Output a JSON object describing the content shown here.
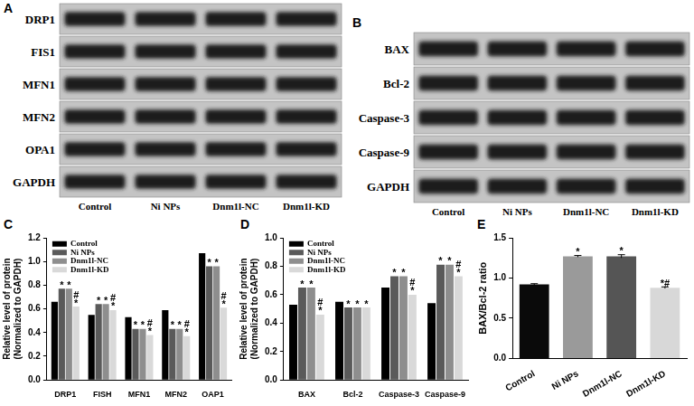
{
  "blots": [
    {
      "panel": "A",
      "rows": [
        "DRP1",
        "FIS1",
        "MFN1",
        "MFN2",
        "OPA1",
        "GAPDH"
      ],
      "lanes": [
        "Control",
        "Ni NPs",
        "Dnm1l-NC",
        "Dnm1l-KD"
      ]
    },
    {
      "panel": "B",
      "rows": [
        "BAX",
        "Bcl-2",
        "Caspase-3",
        "Caspase-9",
        "GAPDH"
      ],
      "lanes": [
        "Control",
        "Ni NPs",
        "Dnm1l-NC",
        "Dnm1l-KD"
      ]
    }
  ],
  "chart_data": [
    {
      "panel": "C",
      "type": "bar",
      "y_label": "Relative level of protein (Normalized to GAPDH)",
      "categories": [
        "DRP1",
        "FISH",
        "MFN1",
        "MFN2",
        "OAP1"
      ],
      "series": [
        {
          "name": "Control",
          "color": "#000000",
          "values": [
            0.66,
            0.55,
            0.53,
            0.59,
            1.07
          ],
          "marks": [
            null,
            null,
            null,
            null,
            null
          ]
        },
        {
          "name": "Ni NPs",
          "color": "#5a5a5a",
          "values": [
            0.77,
            0.64,
            0.43,
            0.43,
            0.96
          ],
          "marks": [
            "*",
            "*",
            "*",
            "*",
            "*"
          ]
        },
        {
          "name": "Dnm1l-NC",
          "color": "#8e8e8e",
          "values": [
            0.77,
            0.64,
            0.43,
            0.43,
            0.96
          ],
          "marks": [
            "*",
            "*",
            "*",
            "*",
            "*"
          ]
        },
        {
          "name": "Dnm1l-KD",
          "color": "#d9d9d9",
          "values": [
            0.62,
            0.59,
            0.38,
            0.37,
            0.61
          ],
          "marks": [
            "#*",
            "#*",
            "#*",
            "#*",
            "#*"
          ]
        }
      ],
      "ylim": [
        0,
        1.2
      ],
      "yticks": [
        {
          "value": 0,
          "label": "0.0"
        },
        {
          "value": 0.2,
          "label": "0.2"
        },
        {
          "value": 0.4,
          "label": "0.4"
        },
        {
          "value": 0.6,
          "label": "0.6"
        },
        {
          "value": 0.8,
          "label": "0.8"
        },
        {
          "value": 1.0,
          "label": "1.0"
        },
        {
          "value": 1.2,
          "label": "1.2"
        }
      ],
      "legend": "upper left",
      "grid": false
    },
    {
      "panel": "D",
      "type": "bar",
      "y_label": "Relative level of protein (Normalized to GAPDH)",
      "categories": [
        "BAX",
        "Bcl-2",
        "Caspase-3",
        "Caspase-9"
      ],
      "series": [
        {
          "name": "Control",
          "color": "#000000",
          "values": [
            0.53,
            0.55,
            0.65,
            0.54
          ],
          "marks": [
            null,
            null,
            null,
            null
          ]
        },
        {
          "name": "Ni NPs",
          "color": "#5a5a5a",
          "values": [
            0.65,
            0.51,
            0.73,
            0.81
          ],
          "marks": [
            "*",
            "*",
            "*",
            "*"
          ]
        },
        {
          "name": "Dnm1l-NC",
          "color": "#8e8e8e",
          "values": [
            0.65,
            0.51,
            0.73,
            0.81
          ],
          "marks": [
            "*",
            "*",
            "*",
            "*"
          ]
        },
        {
          "name": "Dnm1l-KD",
          "color": "#d9d9d9",
          "values": [
            0.46,
            0.51,
            0.6,
            0.73
          ],
          "marks": [
            "#*",
            "*",
            "#*",
            "#*"
          ]
        }
      ],
      "ylim": [
        0,
        1.0
      ],
      "yticks": [
        {
          "value": 0,
          "label": "0.0"
        },
        {
          "value": 0.2,
          "label": "0.2"
        },
        {
          "value": 0.4,
          "label": "0.4"
        },
        {
          "value": 0.6,
          "label": "0.6"
        },
        {
          "value": 0.8,
          "label": "0.8"
        },
        {
          "value": 1.0,
          "label": "1.0"
        }
      ],
      "legend": "upper left",
      "grid": false
    },
    {
      "panel": "E",
      "type": "bar",
      "y_label": "BAX/Bcl-2 ratio",
      "categories": [
        "Control",
        "Ni NPs",
        "Dnm1l-NC",
        "Dnm1l-KD"
      ],
      "values": [
        0.92,
        1.27,
        1.27,
        0.88
      ],
      "errors": [
        0.01,
        0.01,
        0.02,
        0.01
      ],
      "colors": [
        "#0a0a0a",
        "#9a9a9a",
        "#555555",
        "#d8d8d8"
      ],
      "marks": [
        null,
        "*",
        "*",
        "*#"
      ],
      "ylim": [
        0,
        1.5
      ],
      "yticks": [
        {
          "value": 0,
          "label": "0.0"
        },
        {
          "value": 0.5,
          "label": "0.5"
        },
        {
          "value": 1.0,
          "label": "1.0"
        },
        {
          "value": 1.5,
          "label": "1.5"
        }
      ],
      "grid": false
    }
  ]
}
